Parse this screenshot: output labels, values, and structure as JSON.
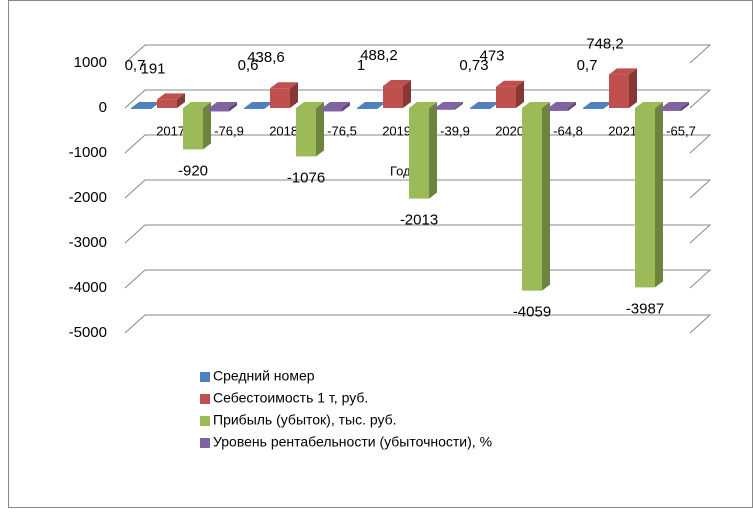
{
  "chart_data": {
    "type": "bar3d",
    "x_label": "Годы",
    "categories": [
      "2017 г.",
      "2018 г.",
      "2019 г.",
      "2020 г.",
      "2021 г."
    ],
    "series": [
      {
        "name": "Средний номер",
        "color": "#4f81bd",
        "values": [
          0.7,
          0.6,
          1,
          0.73,
          0.7
        ],
        "value_labels": [
          "0,7",
          "0,6",
          "1",
          "0,73",
          "0,7"
        ]
      },
      {
        "name": "Себестоимость 1 т, руб.",
        "color": "#c0504d",
        "values": [
          191,
          438.6,
          488.2,
          473,
          748.2
        ],
        "value_labels": [
          "191",
          "438,6",
          "488,2",
          "473",
          "748,2"
        ]
      },
      {
        "name": "Прибыль (убыток), тыс. руб.",
        "color": "#9bbb59",
        "values": [
          -920,
          -1076,
          -2013,
          -4059,
          -3987
        ]
      },
      {
        "name": "Уровень рентабельности (убыточности), %",
        "color": "#8064a2",
        "values": [
          -76.9,
          -76.5,
          -39.9,
          -64.8,
          -65.7
        ],
        "value_labels": [
          "-76,9",
          "-76,5",
          "-39,9",
          "-64,8",
          "-65,7"
        ]
      }
    ],
    "ylim": [
      -5000,
      1000
    ],
    "yticks": [
      -5000,
      -4000,
      -3000,
      -2000,
      -1000,
      0,
      1000
    ],
    "grid": true,
    "legend": "bottom"
  }
}
